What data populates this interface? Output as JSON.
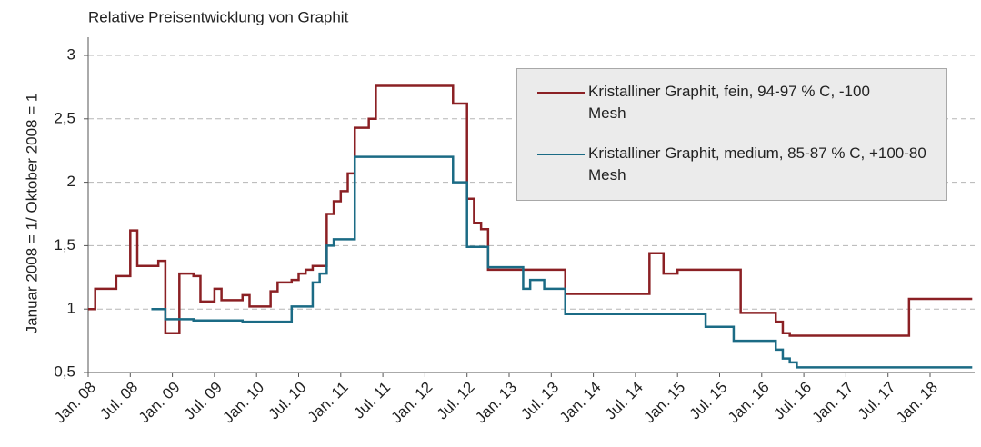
{
  "chart_data": {
    "type": "line",
    "title": "Relative Preisentwicklung von Graphit",
    "y_label": "Januar 2008 = 1/ Oktober 2008 = 1",
    "categories": [
      "Jan. 08",
      null,
      null,
      null,
      null,
      null,
      "Jul. 08",
      null,
      null,
      null,
      null,
      null,
      "Jan. 09",
      null,
      null,
      null,
      null,
      null,
      "Jul. 09",
      null,
      null,
      null,
      null,
      null,
      "Jan. 10",
      null,
      null,
      null,
      null,
      null,
      "Jul. 10",
      null,
      null,
      null,
      null,
      null,
      "Jan. 11",
      null,
      null,
      null,
      null,
      null,
      "Jul. 11",
      null,
      null,
      null,
      null,
      null,
      "Jan. 12",
      null,
      null,
      null,
      null,
      null,
      "Jul. 12",
      null,
      null,
      null,
      null,
      null,
      "Jan. 13",
      null,
      null,
      null,
      null,
      null,
      "Jul. 13",
      null,
      null,
      null,
      null,
      null,
      "Jan. 14",
      null,
      null,
      null,
      null,
      null,
      "Jul. 14",
      null,
      null,
      null,
      null,
      null,
      "Jan. 15",
      null,
      null,
      null,
      null,
      null,
      "Jul. 15",
      null,
      null,
      null,
      null,
      null,
      "Jan. 16",
      null,
      null,
      null,
      null,
      null,
      "Jul. 16",
      null,
      null,
      null,
      null,
      null,
      "Jan. 17",
      null,
      null,
      null,
      null,
      null,
      "Jul. 17",
      null,
      null,
      null,
      null,
      null,
      "Jan. 18",
      null,
      null,
      null,
      null,
      null,
      null
    ],
    "series": [
      {
        "name": "Kristalliner Graphit, fein, 94-97 % C, -100 Mesh",
        "color": "#8b2024",
        "values": [
          1.0,
          1.16,
          1.16,
          1.16,
          1.26,
          1.26,
          1.62,
          1.34,
          1.34,
          1.34,
          1.38,
          0.81,
          0.81,
          1.28,
          1.28,
          1.26,
          1.06,
          1.06,
          1.16,
          1.07,
          1.07,
          1.07,
          1.11,
          1.02,
          1.02,
          1.02,
          1.14,
          1.21,
          1.21,
          1.23,
          1.28,
          1.31,
          1.34,
          1.34,
          1.75,
          1.85,
          1.93,
          2.07,
          2.43,
          2.43,
          2.5,
          2.76,
          2.76,
          2.76,
          2.76,
          2.76,
          2.76,
          2.76,
          2.76,
          2.76,
          2.76,
          2.76,
          2.62,
          2.62,
          1.87,
          1.68,
          1.63,
          1.31,
          1.31,
          1.31,
          1.31,
          1.31,
          1.31,
          1.31,
          1.31,
          1.31,
          1.31,
          1.31,
          1.12,
          1.12,
          1.12,
          1.12,
          1.12,
          1.12,
          1.12,
          1.12,
          1.12,
          1.12,
          1.12,
          1.12,
          1.44,
          1.44,
          1.28,
          1.28,
          1.31,
          1.31,
          1.31,
          1.31,
          1.31,
          1.31,
          1.31,
          1.31,
          1.31,
          0.97,
          0.97,
          0.97,
          0.97,
          0.97,
          0.9,
          0.81,
          0.79,
          0.79,
          0.79,
          0.79,
          0.79,
          0.79,
          0.79,
          0.79,
          0.79,
          0.79,
          0.79,
          0.79,
          0.79,
          0.79,
          0.79,
          0.79,
          0.79,
          1.08,
          1.08,
          1.08,
          1.08,
          1.08,
          1.08,
          1.08,
          1.08,
          1.08,
          1.08
        ]
      },
      {
        "name": "Kristalliner Graphit, medium, 85-87 % C, +100-80 Mesh",
        "color": "#1b6b85",
        "values": [
          null,
          null,
          null,
          null,
          null,
          null,
          null,
          null,
          null,
          1.0,
          1.0,
          0.92,
          0.92,
          0.92,
          0.92,
          0.91,
          0.91,
          0.91,
          0.91,
          0.91,
          0.91,
          0.91,
          0.9,
          0.9,
          0.9,
          0.9,
          0.9,
          0.9,
          0.9,
          1.02,
          1.02,
          1.02,
          1.21,
          1.28,
          1.5,
          1.55,
          1.55,
          1.55,
          2.2,
          2.2,
          2.2,
          2.2,
          2.2,
          2.2,
          2.2,
          2.2,
          2.2,
          2.2,
          2.2,
          2.2,
          2.2,
          2.2,
          2.0,
          2.0,
          1.49,
          1.49,
          1.49,
          1.33,
          1.33,
          1.33,
          1.33,
          1.33,
          1.16,
          1.23,
          1.23,
          1.16,
          1.16,
          1.16,
          0.96,
          0.96,
          0.96,
          0.96,
          0.96,
          0.96,
          0.96,
          0.96,
          0.96,
          0.96,
          0.96,
          0.96,
          0.96,
          0.96,
          0.96,
          0.96,
          0.96,
          0.96,
          0.96,
          0.96,
          0.86,
          0.86,
          0.86,
          0.86,
          0.75,
          0.75,
          0.75,
          0.75,
          0.75,
          0.75,
          0.68,
          0.61,
          0.58,
          0.54,
          0.54,
          0.54,
          0.54,
          0.54,
          0.54,
          0.54,
          0.54,
          0.54,
          0.54,
          0.54,
          0.54,
          0.54,
          0.54,
          0.54,
          0.54,
          0.54,
          0.54,
          0.54,
          0.54,
          0.54,
          0.54,
          0.54,
          0.54,
          0.54,
          0.54
        ]
      }
    ],
    "ylim": [
      0.5,
      3
    ],
    "yticks": [
      {
        "value": 0.5,
        "label": "0,5"
      },
      1,
      {
        "value": 1.5,
        "label": "1,5"
      },
      2,
      {
        "value": 2.5,
        "label": "2,5"
      },
      3
    ],
    "grid": true
  }
}
